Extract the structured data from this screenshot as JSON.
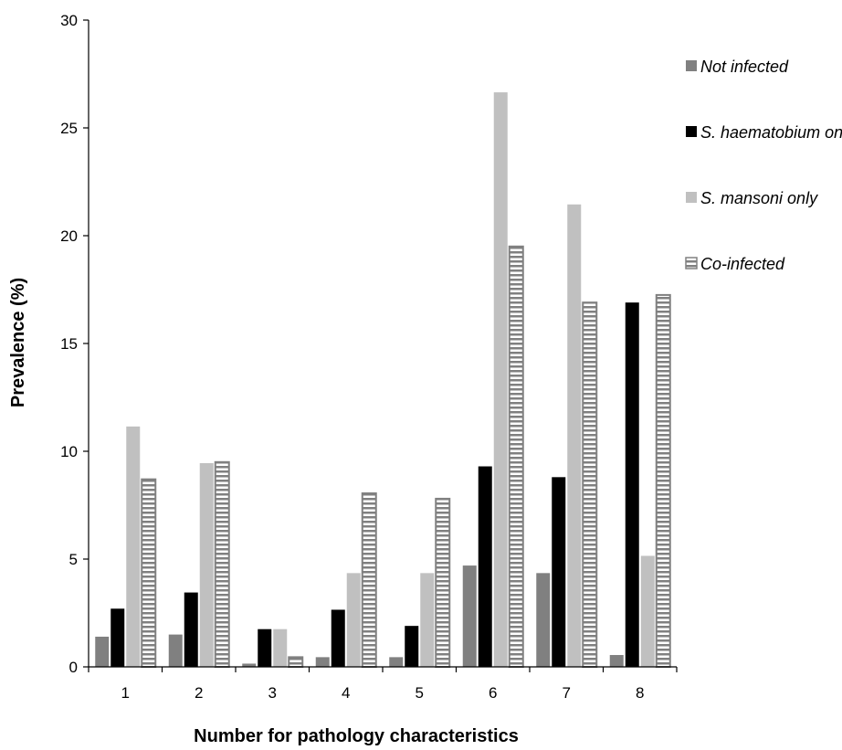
{
  "chart_data": {
    "type": "bar",
    "title": "",
    "xlabel": "Number for pathology characteristics",
    "ylabel": "Prevalence (%)",
    "ylim": [
      0,
      30
    ],
    "yticks": [
      0,
      5,
      10,
      15,
      20,
      25,
      30
    ],
    "categories": [
      "1",
      "2",
      "3",
      "4",
      "5",
      "6",
      "7",
      "8"
    ],
    "grid": false,
    "legend_position": "right",
    "series": [
      {
        "name": "Not infected",
        "color": "#808080",
        "pattern": "solid",
        "values": [
          1.4,
          1.5,
          0.15,
          0.45,
          0.45,
          4.7,
          4.35,
          0.55
        ]
      },
      {
        "name": "S. haematobium only",
        "color": "#000000",
        "pattern": "solid",
        "values": [
          2.7,
          3.45,
          1.75,
          2.65,
          1.9,
          9.3,
          8.8,
          16.9
        ]
      },
      {
        "name": "S. mansoni only",
        "color": "#c0c0c0",
        "pattern": "solid",
        "values": [
          11.15,
          9.45,
          1.75,
          4.35,
          4.35,
          26.65,
          21.45,
          5.15
        ]
      },
      {
        "name": "Co-infected",
        "color": "#808080",
        "pattern": "horizontal-stripes",
        "values": [
          8.7,
          9.5,
          0.45,
          8.05,
          7.8,
          19.5,
          16.9,
          17.25
        ]
      }
    ]
  }
}
